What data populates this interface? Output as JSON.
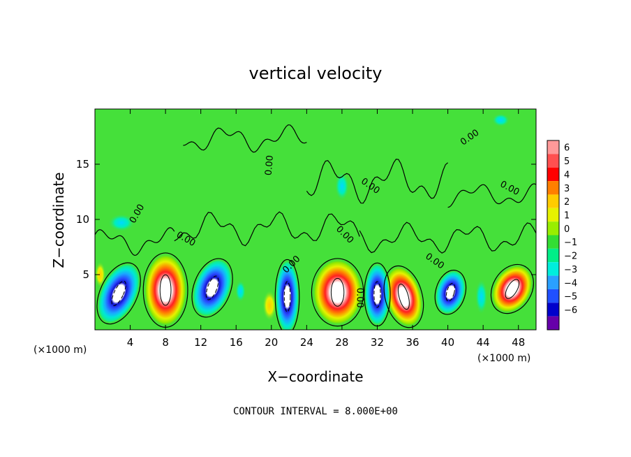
{
  "chart_data": {
    "type": "heatmap",
    "title": "vertical velocity",
    "xlabel": "X−coordinate",
    "ylabel": "Z−coordinate",
    "x_unit_label": "(×1000 m)",
    "x_unit_label_right": "(×1000 m)",
    "footer": "CONTOUR INTERVAL = 8.000E+00",
    "xlim": [
      0,
      50
    ],
    "ylim": [
      0,
      20
    ],
    "x_ticks": [
      "4",
      "8",
      "12",
      "16",
      "20",
      "24",
      "28",
      "32",
      "36",
      "40",
      "44",
      "48"
    ],
    "x_tick_values": [
      4,
      8,
      12,
      16,
      20,
      24,
      28,
      32,
      36,
      40,
      44,
      48
    ],
    "y_ticks": [
      "5",
      "10",
      "15"
    ],
    "y_tick_values": [
      5,
      10,
      15
    ],
    "colorbar": {
      "labels": [
        "6",
        "5",
        "4",
        "3",
        "2",
        "1",
        "0",
        "−1",
        "−2",
        "−3",
        "−4",
        "−5",
        "−6"
      ],
      "colors": [
        "#ff9999",
        "#ff5050",
        "#ff0000",
        "#ff7f00",
        "#ffcc00",
        "#e6f200",
        "#99ee00",
        "#33dd33",
        "#00ee88",
        "#00eedd",
        "#2aa0ff",
        "#2050ff",
        "#0000cc",
        "#6600aa"
      ]
    },
    "contour_labels": [
      {
        "text": "0.00",
        "x": 4.8,
        "z": 10.5,
        "angle": -60
      },
      {
        "text": "0.00",
        "x": 10.3,
        "z": 8.2,
        "angle": 30
      },
      {
        "text": "0.00",
        "x": 19.8,
        "z": 14.9,
        "angle": -85
      },
      {
        "text": "0.00",
        "x": 28.3,
        "z": 8.6,
        "angle": 45
      },
      {
        "text": "0.00",
        "x": 31.2,
        "z": 13.0,
        "angle": 35
      },
      {
        "text": "0.00",
        "x": 42.5,
        "z": 17.4,
        "angle": -35
      },
      {
        "text": "0.00",
        "x": 47.0,
        "z": 12.8,
        "angle": 28
      },
      {
        "text": "0.00",
        "x": 22.3,
        "z": 5.9,
        "angle": -45
      },
      {
        "text": "0.00",
        "x": 30.0,
        "z": 2.9,
        "angle": 90
      },
      {
        "text": "0.00",
        "x": 38.5,
        "z": 6.2,
        "angle": 35
      }
    ],
    "cells": [
      {
        "x": 8.0,
        "z": 3.6,
        "rx": 2.4,
        "rz": 3.3,
        "val": 1,
        "tilt": 0
      },
      {
        "x": 27.5,
        "z": 3.4,
        "rx": 2.8,
        "rz": 3.0,
        "val": 1,
        "tilt": 0
      },
      {
        "x": 35.0,
        "z": 3.0,
        "rx": 2.0,
        "rz": 2.8,
        "val": 1,
        "tilt": -15
      },
      {
        "x": 47.3,
        "z": 3.7,
        "rx": 2.1,
        "rz": 2.3,
        "val": 1,
        "tilt": 30
      },
      {
        "x": 19.8,
        "z": 2.2,
        "rx": 0.8,
        "rz": 1.4,
        "val": 0.55,
        "tilt": 0
      },
      {
        "x": 2.7,
        "z": 3.3,
        "rx": 2.0,
        "rz": 2.9,
        "val": -1,
        "tilt": 25
      },
      {
        "x": 13.3,
        "z": 3.8,
        "rx": 2.0,
        "rz": 2.7,
        "val": -1,
        "tilt": 20
      },
      {
        "x": 21.8,
        "z": 3.0,
        "rx": 1.3,
        "rz": 3.3,
        "val": -1,
        "tilt": 0
      },
      {
        "x": 32.0,
        "z": 3.2,
        "rx": 1.4,
        "rz": 2.8,
        "val": -1,
        "tilt": 0
      },
      {
        "x": 40.3,
        "z": 3.4,
        "rx": 1.6,
        "rz": 2.0,
        "val": -0.9,
        "tilt": 15
      },
      {
        "x": 43.8,
        "z": 3.0,
        "rx": 0.7,
        "rz": 1.6,
        "val": -0.45,
        "tilt": 0
      },
      {
        "x": 16.5,
        "z": 3.5,
        "rx": 0.6,
        "rz": 1.0,
        "val": -0.25,
        "tilt": 0
      },
      {
        "x": 3.0,
        "z": 9.7,
        "rx": 1.5,
        "rz": 0.8,
        "val": -0.2,
        "tilt": 0
      },
      {
        "x": 28.0,
        "z": 13.0,
        "rx": 0.8,
        "rz": 1.3,
        "val": -0.15,
        "tilt": 0
      },
      {
        "x": 46.0,
        "z": 19.0,
        "rx": 1.0,
        "rz": 0.6,
        "val": -0.15,
        "tilt": 0
      },
      {
        "x": 0.6,
        "z": 5.0,
        "rx": 0.6,
        "rz": 1.2,
        "val": 0.5,
        "tilt": 0
      }
    ]
  }
}
